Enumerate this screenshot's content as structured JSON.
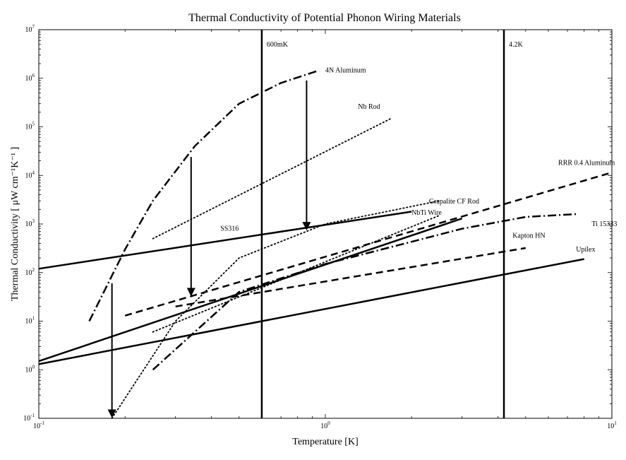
{
  "chart_data": {
    "type": "line",
    "title": "Thermal Conductivity of Potential Phonon Wiring Materials",
    "xlabel": "Temperature [K]",
    "ylabel": "Thermal Conductivity [ μW cm⁻¹K⁻¹ ]",
    "x_scale": "log",
    "y_scale": "log",
    "xlim": [
      0.1,
      10
    ],
    "ylim": [
      0.1,
      10000000
    ],
    "grid": false,
    "x_ticks": [
      {
        "value": 0.1,
        "base": "10",
        "exp": "-1"
      },
      {
        "value": 1,
        "base": "10",
        "exp": "0"
      },
      {
        "value": 10,
        "base": "10",
        "exp": "1"
      }
    ],
    "y_ticks": [
      {
        "value": 0.1,
        "base": "10",
        "exp": "-1"
      },
      {
        "value": 1,
        "base": "10",
        "exp": "0"
      },
      {
        "value": 10,
        "base": "10",
        "exp": "1"
      },
      {
        "value": 100,
        "base": "10",
        "exp": "2"
      },
      {
        "value": 1000,
        "base": "10",
        "exp": "3"
      },
      {
        "value": 10000,
        "base": "10",
        "exp": "4"
      },
      {
        "value": 100000,
        "base": "10",
        "exp": "5"
      },
      {
        "value": 1000000,
        "base": "10",
        "exp": "6"
      },
      {
        "value": 10000000,
        "base": "10",
        "exp": "7"
      }
    ],
    "vertical_lines": [
      {
        "x": 0.6,
        "label": "600mK"
      },
      {
        "x": 4.2,
        "label": "4.2K"
      }
    ],
    "series": [
      {
        "name": "4N Aluminum",
        "style": "dashdot",
        "x": [
          0.15,
          0.2,
          0.25,
          0.35,
          0.5,
          0.7,
          0.95
        ],
        "y": [
          10,
          300,
          3000,
          40000,
          300000,
          800000,
          1450000
        ]
      },
      {
        "name": "Nb Rod",
        "style": "dotted",
        "x": [
          0.25,
          1.7
        ],
        "y": [
          500,
          150000
        ]
      },
      {
        "name": "RRR 0.4 Aluminum",
        "style": "dashed",
        "x": [
          0.2,
          10
        ],
        "y": [
          13,
          11500
        ]
      },
      {
        "name": "SS316",
        "style": "solid",
        "x": [
          0.1,
          2
        ],
        "y": [
          120,
          1800
        ]
      },
      {
        "name": "NbTi Wire",
        "style": "solid",
        "x": [
          0.1,
          3
        ],
        "y": [
          1.5,
          1300
        ]
      },
      {
        "name": "Grapalite CF Rod",
        "style": "dotted",
        "x": [
          0.18,
          0.3,
          0.5,
          1.0,
          2.5
        ],
        "y": [
          0.1,
          10,
          200,
          1000,
          3000
        ]
      },
      {
        "name": "Ti 15333",
        "style": "dashdot",
        "x": [
          0.25,
          0.5,
          1.0,
          3.0,
          5.0,
          7.5
        ],
        "y": [
          1,
          40,
          150,
          800,
          1400,
          1600
        ]
      },
      {
        "name": "Kapton HN",
        "style": "dashed",
        "x": [
          0.3,
          5
        ],
        "y": [
          20,
          320
        ]
      },
      {
        "name": "Upilex",
        "style": "solid",
        "x": [
          0.1,
          8
        ],
        "y": [
          1.3,
          190
        ]
      },
      {
        "name": "",
        "style": "dotted",
        "x": [
          0.25,
          2.5
        ],
        "y": [
          6,
          1500
        ]
      }
    ],
    "annotations": [
      {
        "text": "4N Aluminum",
        "x": 1.0,
        "y": 1450000,
        "anchor": "start"
      },
      {
        "text": "Nb Rod",
        "x": 1.3,
        "y": 260000,
        "anchor": "start"
      },
      {
        "text": "RRR 0.4 Aluminum",
        "x": 6.5,
        "y": 18000,
        "anchor": "start"
      },
      {
        "text": "SS316",
        "x": 0.43,
        "y": 800,
        "anchor": "start"
      },
      {
        "text": "NbTi Wire",
        "x": 2.0,
        "y": 1700,
        "anchor": "start"
      },
      {
        "text": "Grapalite CF Rod",
        "x": 2.3,
        "y": 2900,
        "anchor": "start"
      },
      {
        "text": "Ti 15333",
        "x": 8.5,
        "y": 1000,
        "anchor": "start"
      },
      {
        "text": "Kapton HN",
        "x": 4.5,
        "y": 580,
        "anchor": "start"
      },
      {
        "text": "Upilex",
        "x": 7.5,
        "y": 300,
        "anchor": "start"
      }
    ],
    "arrows": [
      {
        "x": 0.86,
        "y_from": 900000,
        "y_to": 800
      },
      {
        "x": 0.34,
        "y_from": 24000,
        "y_to": 35
      },
      {
        "x": 0.18,
        "y_from": 60,
        "y_to": 0.11
      }
    ]
  }
}
